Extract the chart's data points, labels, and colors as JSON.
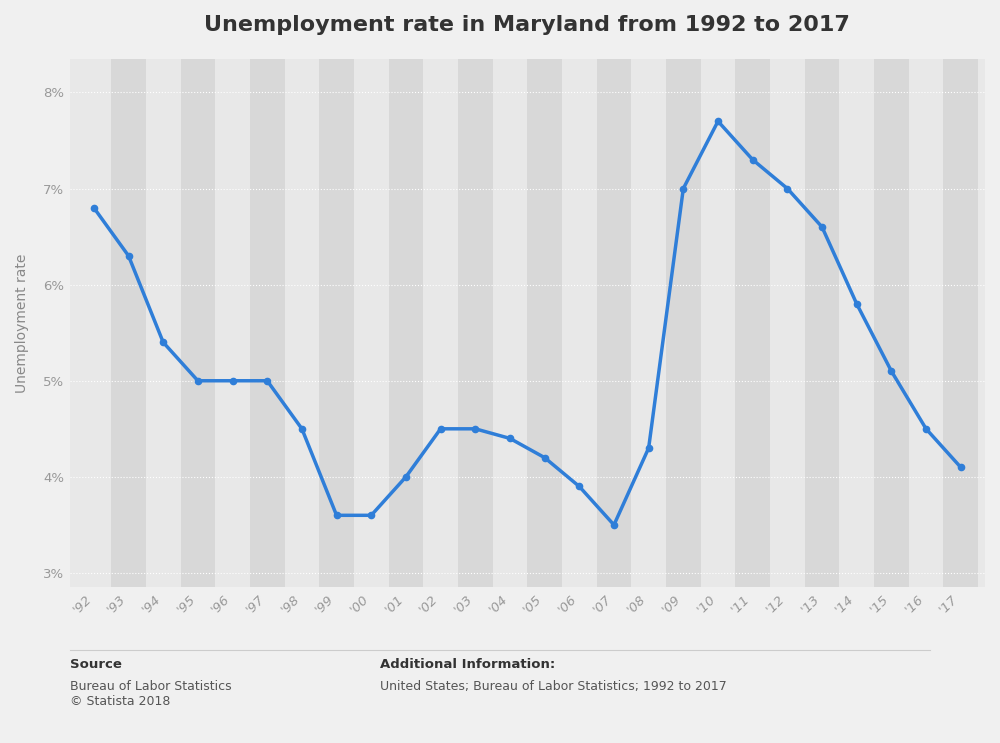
{
  "title": "Unemployment rate in Maryland from 1992 to 2017",
  "ylabel": "Unemployment rate",
  "years": [
    1992,
    1993,
    1994,
    1995,
    1996,
    1997,
    1998,
    1999,
    2000,
    2001,
    2002,
    2003,
    2004,
    2005,
    2006,
    2007,
    2008,
    2009,
    2010,
    2011,
    2012,
    2013,
    2014,
    2015,
    2016,
    2017
  ],
  "values": [
    6.8,
    6.3,
    5.4,
    5.0,
    5.0,
    5.0,
    4.5,
    3.6,
    3.6,
    4.0,
    4.5,
    4.5,
    4.4,
    4.2,
    3.9,
    3.5,
    4.3,
    7.0,
    7.7,
    7.3,
    7.0,
    6.6,
    5.8,
    5.1,
    4.5,
    4.1
  ],
  "tick_labels": [
    "'92",
    "'93",
    "'94",
    "'95",
    "'96",
    "'97",
    "'98",
    "'99",
    "'00",
    "'01",
    "'02",
    "'03",
    "'04",
    "'05",
    "'06",
    "'07",
    "'08",
    "'09",
    "'10",
    "'11",
    "'12",
    "'13",
    "'14",
    "'15",
    "'16",
    "'17"
  ],
  "ytick_labels": [
    "3%",
    "4%",
    "5%",
    "6%",
    "7%",
    "8%"
  ],
  "ytick_values": [
    3,
    4,
    5,
    6,
    7,
    8
  ],
  "ylim": [
    2.85,
    8.35
  ],
  "xlim_left": 1991.3,
  "xlim_right": 2017.7,
  "line_color": "#2f7ed8",
  "marker_color": "#2f7ed8",
  "bg_plot_light": "#e8e8e8",
  "bg_plot_dark": "#d8d8d8",
  "bg_figure": "#f0f0f0",
  "grid_color": "#ffffff",
  "title_fontsize": 16,
  "axis_label_fontsize": 10,
  "tick_fontsize": 9.5,
  "source_label": "Source",
  "source_body": "Bureau of Labor Statistics\n© Statista 2018",
  "additional_label": "Additional Information:",
  "additional_body": "United States; Bureau of Labor Statistics; 1992 to 2017"
}
